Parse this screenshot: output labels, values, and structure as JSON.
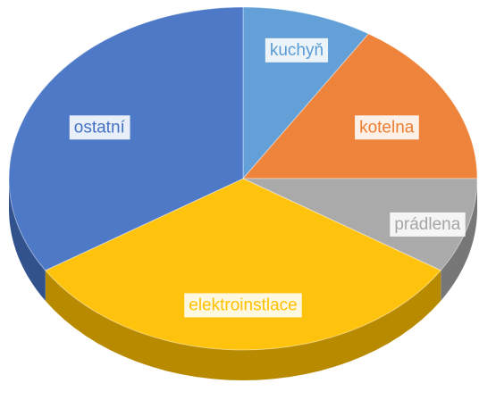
{
  "chart_data": {
    "type": "pie",
    "categories": [
      "kuchyň",
      "kotelna",
      "prádlena",
      "elektroinstlace",
      "ostatní"
    ],
    "values": [
      9,
      16,
      9,
      32,
      34
    ],
    "colors": [
      "#5b9bd5",
      "#ed7d31",
      "#a5a5a5",
      "#ffc000",
      "#4472c4"
    ]
  }
}
